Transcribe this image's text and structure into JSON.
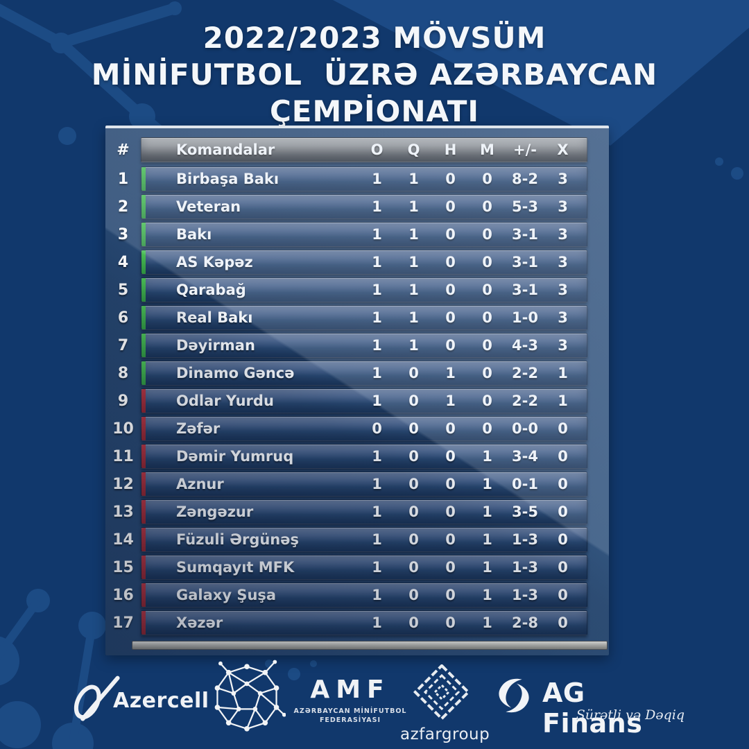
{
  "title": {
    "line1": "2022/2023 MÖVSÜM",
    "line2": "MİNİFUTBOL  ÜZRƏ AZƏRBAYCAN",
    "line3": "ÇEMPİONATI"
  },
  "table_headers": {
    "rank": "#",
    "team": "Komandalar",
    "stats": [
      "O",
      "Q",
      "H",
      "M",
      "+/-",
      "X"
    ]
  },
  "chart_data": {
    "type": "table",
    "columns": [
      "#",
      "Komandalar",
      "O",
      "Q",
      "H",
      "M",
      "+/-",
      "X"
    ],
    "rows": [
      [
        "1",
        "Birbaşa Bakı",
        "1",
        "1",
        "0",
        "0",
        "8-2",
        "3"
      ],
      [
        "2",
        "Veteran",
        "1",
        "1",
        "0",
        "0",
        "5-3",
        "3"
      ],
      [
        "3",
        "Bakı",
        "1",
        "1",
        "0",
        "0",
        "3-1",
        "3"
      ],
      [
        "4",
        "AS Kəpəz",
        "1",
        "1",
        "0",
        "0",
        "3-1",
        "3"
      ],
      [
        "5",
        "Qarabağ",
        "1",
        "1",
        "0",
        "0",
        "3-1",
        "3"
      ],
      [
        "6",
        "Real Bakı",
        "1",
        "1",
        "0",
        "0",
        "1-0",
        "3"
      ],
      [
        "7",
        "Dəyirman",
        "1",
        "1",
        "0",
        "0",
        "4-3",
        "3"
      ],
      [
        "8",
        "Dinamo Gəncə",
        "1",
        "0",
        "1",
        "0",
        "2-2",
        "1"
      ],
      [
        "9",
        "Odlar Yurdu",
        "1",
        "0",
        "1",
        "0",
        "2-2",
        "1"
      ],
      [
        "10",
        "Zəfər",
        "0",
        "0",
        "0",
        "0",
        "0-0",
        "0"
      ],
      [
        "11",
        "Dəmir Yumruq",
        "1",
        "0",
        "0",
        "1",
        "3-4",
        "0"
      ],
      [
        "12",
        "Aznur",
        "1",
        "0",
        "0",
        "1",
        "0-1",
        "0"
      ],
      [
        "13",
        "Zəngəzur",
        "1",
        "0",
        "0",
        "1",
        "3-5",
        "0"
      ],
      [
        "14",
        "Füzuli Ərgünəş",
        "1",
        "0",
        "0",
        "1",
        "1-3",
        "0"
      ],
      [
        "15",
        "Sumqayıt MFK",
        "1",
        "0",
        "0",
        "1",
        "1-3",
        "0"
      ],
      [
        "16",
        "Galaxy Şuşa",
        "1",
        "0",
        "0",
        "1",
        "1-3",
        "0"
      ],
      [
        "17",
        "Xəzər",
        "1",
        "0",
        "0",
        "1",
        "2-8",
        "0"
      ]
    ],
    "green_zone_rows": [
      1,
      2,
      3,
      4,
      5,
      6,
      7,
      8
    ],
    "red_zone_rows": [
      9,
      10,
      11,
      12,
      13,
      14,
      15,
      16,
      17
    ]
  },
  "footer": {
    "azercell_label": "Azercell",
    "amf_abbr": "AMF",
    "amf_sub_line1": "AZƏRBAYCAN MİNİFUTBOL",
    "amf_sub_line2": "FEDERASİYASI",
    "azfar_label": "azfargroup",
    "agfinans_label": "AG Finans",
    "agfinans_tagline": "Sürətli və Dəqiq"
  },
  "colors": {
    "page_background": "#11386c",
    "decoration_blue": "#2b62a3",
    "panel_blue": "#2a4a74",
    "row_gradient_top": "#64789a",
    "row_gradient_bottom": "#21406a",
    "header_gray_top": "#a8abae",
    "header_gray_bottom": "#404347",
    "green_zone": "#3fae4c",
    "red_zone": "#a12c38",
    "silver_bar": "#bcbcb6",
    "text_white": "#f2f5f9"
  }
}
